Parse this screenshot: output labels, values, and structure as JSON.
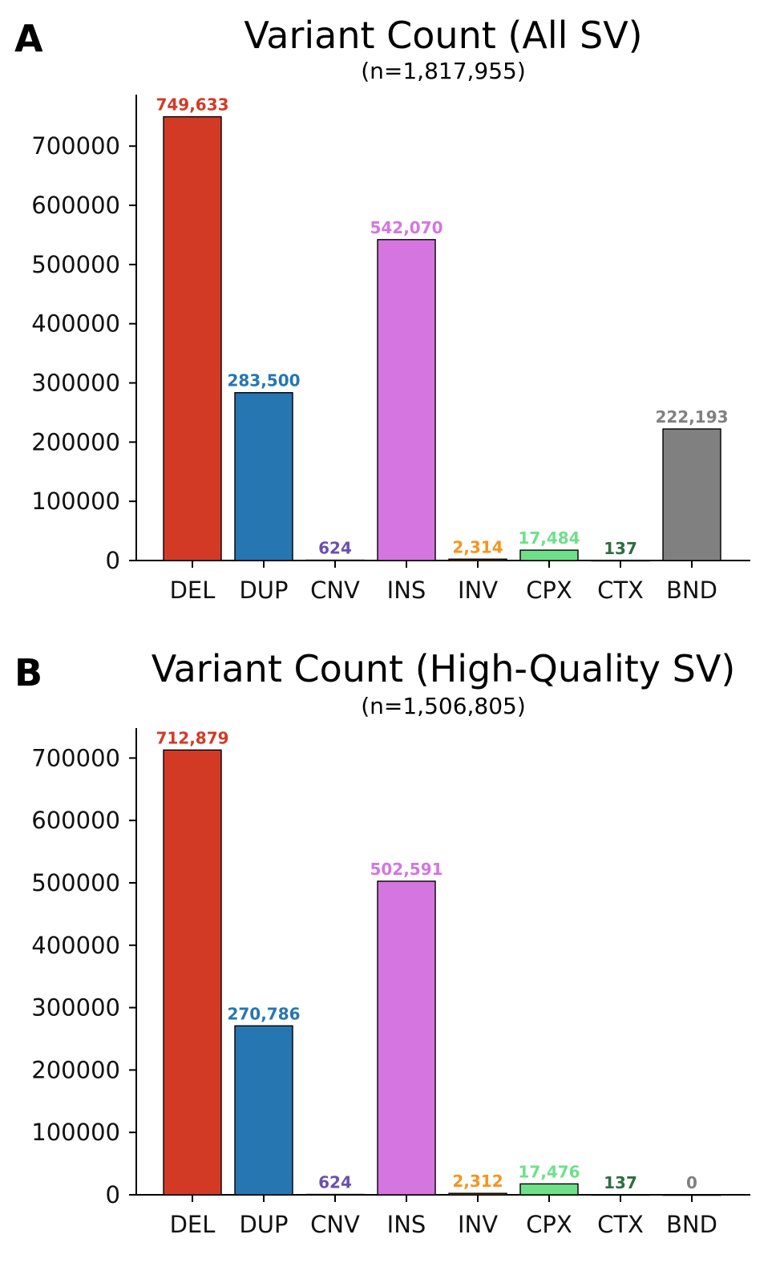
{
  "chart_data": [
    {
      "type": "bar",
      "panel_label": "A",
      "title": "Variant Count (All SV)",
      "subtitle": "(n=1,817,955)",
      "categories": [
        "DEL",
        "DUP",
        "CNV",
        "INS",
        "INV",
        "CPX",
        "CTX",
        "BND"
      ],
      "values": [
        749633,
        283500,
        624,
        542070,
        2314,
        17484,
        137,
        222193
      ],
      "value_labels": [
        "749,633",
        "283,500",
        "624",
        "542,070",
        "2,314",
        "17,484",
        "137",
        "222,193"
      ],
      "colors": [
        "#d33a26",
        "#2676b2",
        "#6b4fb0",
        "#d575e0",
        "#f7941d",
        "#6fe08a",
        "#2e6e3e",
        "#808080"
      ],
      "label_colors": [
        "#d33a26",
        "#2676b2",
        "#6b4fb0",
        "#d575e0",
        "#f7941d",
        "#6fe08a",
        "#2e6e3e",
        "#808080"
      ],
      "yticks": [
        0,
        100000,
        200000,
        300000,
        400000,
        500000,
        600000,
        700000
      ],
      "ylim": [
        0,
        787000
      ],
      "xlabel": "",
      "ylabel": "",
      "grid": false
    },
    {
      "type": "bar",
      "panel_label": "B",
      "title": "Variant Count (High-Quality SV)",
      "subtitle": "(n=1,506,805)",
      "categories": [
        "DEL",
        "DUP",
        "CNV",
        "INS",
        "INV",
        "CPX",
        "CTX",
        "BND"
      ],
      "values": [
        712879,
        270786,
        624,
        502591,
        2312,
        17476,
        137,
        0
      ],
      "value_labels": [
        "712,879",
        "270,786",
        "624",
        "502,591",
        "2,312",
        "17,476",
        "137",
        "0"
      ],
      "colors": [
        "#d33a26",
        "#2676b2",
        "#6b4fb0",
        "#d575e0",
        "#f7941d",
        "#6fe08a",
        "#2e6e3e",
        "#808080"
      ],
      "label_colors": [
        "#d33a26",
        "#2676b2",
        "#6b4fb0",
        "#d575e0",
        "#f7941d",
        "#6fe08a",
        "#2e6e3e",
        "#808080"
      ],
      "yticks": [
        0,
        100000,
        200000,
        300000,
        400000,
        500000,
        600000,
        700000
      ],
      "ylim": [
        0,
        748000
      ],
      "xlabel": "",
      "ylabel": "",
      "grid": false
    }
  ]
}
